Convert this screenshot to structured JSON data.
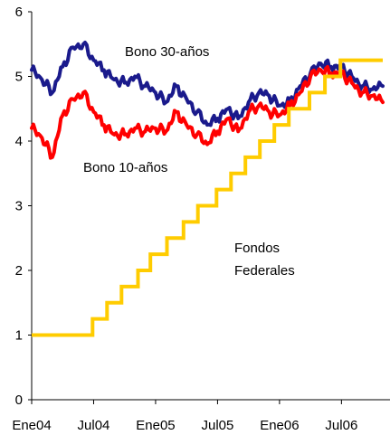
{
  "chart_data": {
    "type": "line",
    "title": "",
    "xlabel": "",
    "ylabel": "",
    "ylim": [
      0,
      6
    ],
    "yticks": [
      0,
      1,
      2,
      3,
      4,
      5,
      6
    ],
    "xlim": [
      "2004-01",
      "2006-11"
    ],
    "xticks": [
      {
        "x": "2004-01",
        "label": "Ene04"
      },
      {
        "x": "2004-07",
        "label": "Jul04"
      },
      {
        "x": "2005-01",
        "label": "Ene05"
      },
      {
        "x": "2005-07",
        "label": "Jul05"
      },
      {
        "x": "2006-01",
        "label": "Ene06"
      },
      {
        "x": "2006-07",
        "label": "Jul06"
      }
    ],
    "grid": false,
    "legend": "none",
    "annotations": [
      {
        "lines": [
          "Bono 30-años"
        ],
        "series": "bono30"
      },
      {
        "lines": [
          "Bono 10-años"
        ],
        "series": "bono10"
      },
      {
        "lines": [
          "Fondos",
          "Federales"
        ],
        "series": "fed"
      }
    ],
    "series": [
      {
        "id": "bono30",
        "color": "#1a1a8c",
        "style": "line",
        "x": [
          "2004-01",
          "2004-02",
          "2004-03",
          "2004-04",
          "2004-05",
          "2004-06",
          "2004-07",
          "2004-08",
          "2004-09",
          "2004-10",
          "2004-11",
          "2004-12",
          "2005-01",
          "2005-02",
          "2005-03",
          "2005-04",
          "2005-05",
          "2005-06",
          "2005-07",
          "2005-08",
          "2005-09",
          "2005-10",
          "2005-11",
          "2005-12",
          "2006-01",
          "2006-02",
          "2006-03",
          "2006-04",
          "2006-05",
          "2006-06",
          "2006-07",
          "2006-08",
          "2006-09",
          "2006-10",
          "2006-11"
        ],
        "values": [
          5.1,
          4.95,
          4.75,
          5.15,
          5.45,
          5.5,
          5.25,
          5.1,
          4.95,
          4.9,
          5.0,
          4.85,
          4.75,
          4.6,
          4.85,
          4.65,
          4.45,
          4.25,
          4.35,
          4.5,
          4.35,
          4.6,
          4.75,
          4.7,
          4.55,
          4.6,
          4.85,
          5.05,
          5.2,
          5.15,
          5.15,
          5.0,
          4.85,
          4.8,
          4.85
        ]
      },
      {
        "id": "bono10",
        "color": "#ff0000",
        "style": "line",
        "x": [
          "2004-01",
          "2004-02",
          "2004-03",
          "2004-04",
          "2004-05",
          "2004-06",
          "2004-07",
          "2004-08",
          "2004-09",
          "2004-10",
          "2004-11",
          "2004-12",
          "2005-01",
          "2005-02",
          "2005-03",
          "2005-04",
          "2005-05",
          "2005-06",
          "2005-07",
          "2005-08",
          "2005-09",
          "2005-10",
          "2005-11",
          "2005-12",
          "2006-01",
          "2006-02",
          "2006-03",
          "2006-04",
          "2006-05",
          "2006-06",
          "2006-07",
          "2006-08",
          "2006-09",
          "2006-10",
          "2006-11"
        ],
        "values": [
          4.2,
          4.05,
          3.75,
          4.4,
          4.65,
          4.75,
          4.45,
          4.25,
          4.1,
          4.1,
          4.2,
          4.15,
          4.2,
          4.15,
          4.45,
          4.25,
          4.1,
          3.95,
          4.15,
          4.35,
          4.15,
          4.45,
          4.55,
          4.45,
          4.4,
          4.55,
          4.75,
          5.0,
          5.1,
          5.05,
          5.05,
          4.9,
          4.75,
          4.7,
          4.6
        ]
      },
      {
        "id": "fed",
        "color": "#ffcc00",
        "style": "step",
        "x": [
          "2004-01",
          "2004-06.9",
          "2004-08.3",
          "2004-09.7",
          "2004-11.3",
          "2004-12.5",
          "2005-02.1",
          "2005-03.7",
          "2005-05.1",
          "2005-06.9",
          "2005-08.3",
          "2005-09.7",
          "2005-11.1",
          "2005-12.5",
          "2006-01.9",
          "2006-03.9",
          "2006-05.4",
          "2006-06.9",
          "2006-11"
        ],
        "values": [
          1.0,
          1.25,
          1.5,
          1.75,
          2.0,
          2.25,
          2.5,
          2.75,
          3.0,
          3.25,
          3.5,
          3.75,
          4.0,
          4.25,
          4.5,
          4.75,
          5.0,
          5.25,
          5.25
        ]
      }
    ]
  }
}
